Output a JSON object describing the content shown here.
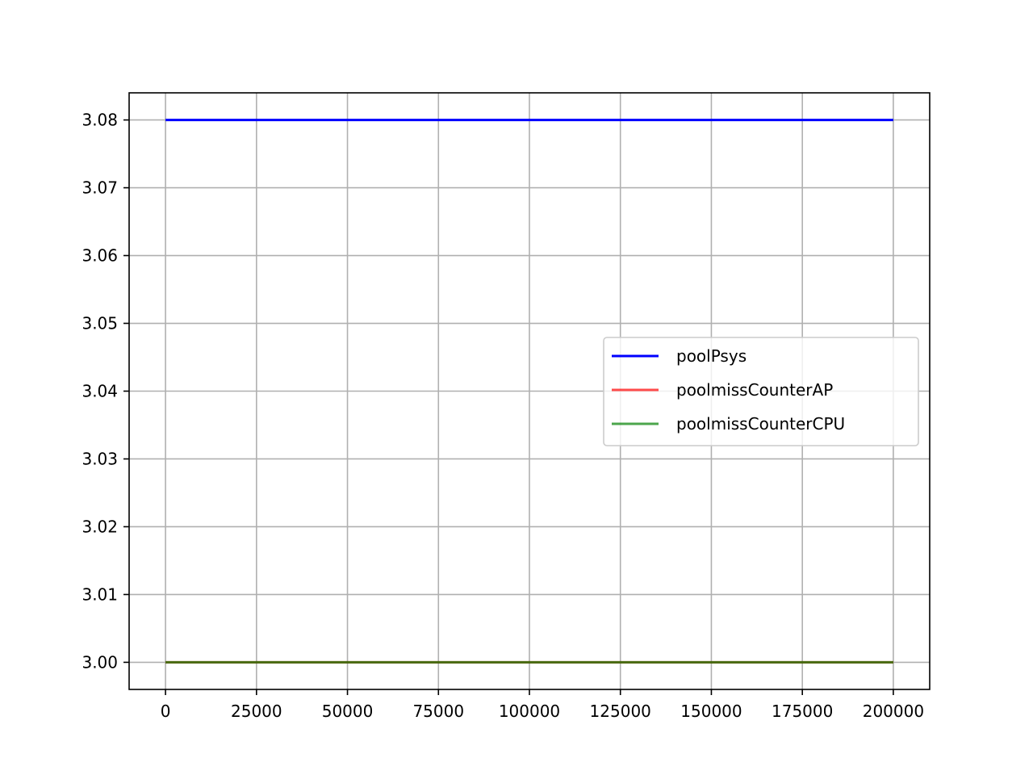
{
  "chart_data": {
    "type": "line",
    "title": "",
    "xlabel": "",
    "ylabel": "",
    "xlim": [
      -10000,
      210000
    ],
    "ylim": [
      2.996,
      3.084
    ],
    "x_ticks": [
      0,
      25000,
      50000,
      75000,
      100000,
      125000,
      150000,
      175000,
      200000
    ],
    "x_tick_labels": [
      "0",
      "25000",
      "50000",
      "75000",
      "100000",
      "125000",
      "150000",
      "175000",
      "200000"
    ],
    "y_ticks": [
      3.0,
      3.01,
      3.02,
      3.03,
      3.04,
      3.05,
      3.06,
      3.07,
      3.08
    ],
    "y_tick_labels": [
      "3.00",
      "3.01",
      "3.02",
      "3.03",
      "3.04",
      "3.05",
      "3.06",
      "3.07",
      "3.08"
    ],
    "grid": true,
    "legend_position": "center-right",
    "series": [
      {
        "name": "poolPsys",
        "color": "#0000ff",
        "alpha": 1.0,
        "x": [
          0,
          66700,
          133300,
          200000
        ],
        "y": [
          3.08,
          3.08,
          3.08,
          3.08
        ]
      },
      {
        "name": "poolmissCounterAP",
        "color": "#ff0000",
        "alpha": 0.7,
        "x": [
          0,
          66700,
          133300,
          200000
        ],
        "y": [
          3.0,
          3.0,
          3.0,
          3.0
        ]
      },
      {
        "name": "poolmissCounterCPU",
        "color": "#008000",
        "alpha": 0.7,
        "x": [
          0,
          66700,
          133300,
          200000
        ],
        "y": [
          3.0,
          3.0,
          3.0,
          3.0
        ]
      }
    ]
  }
}
